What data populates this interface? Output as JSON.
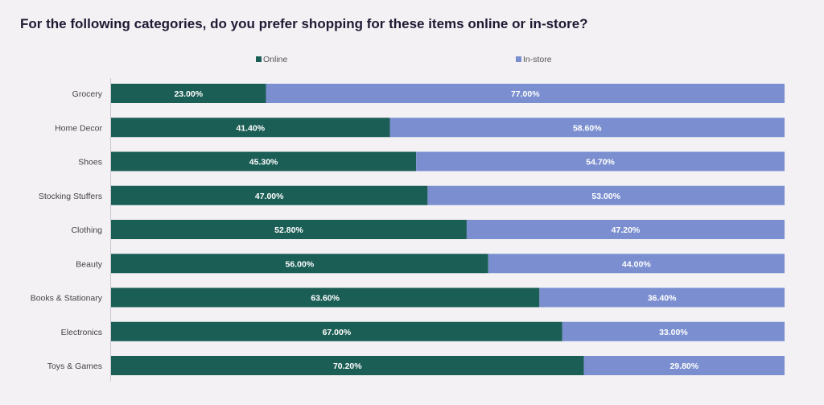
{
  "chart_data": {
    "type": "bar",
    "orientation": "horizontal",
    "stacked": true,
    "title": "For the following categories, do you prefer shopping for these items online or in-store?",
    "categories": [
      "Grocery",
      "Home Decor",
      "Shoes",
      "Stocking Stuffers",
      "Clothing",
      "Beauty",
      "Books & Stationary",
      "Electronics",
      "Toys & Games"
    ],
    "series": [
      {
        "name": "Online",
        "color": "#1b5e55",
        "values": [
          23.0,
          41.4,
          45.3,
          47.0,
          52.8,
          56.0,
          63.6,
          67.0,
          70.2
        ],
        "labels": [
          "23.00%",
          "41.40%",
          "45.30%",
          "47.00%",
          "52.80%",
          "56.00%",
          "63.60%",
          "67.00%",
          "70.20%"
        ]
      },
      {
        "name": "In-store",
        "color": "#7b8fd0",
        "values": [
          77.0,
          58.6,
          54.7,
          53.0,
          47.2,
          44.0,
          36.4,
          33.0,
          29.8
        ],
        "labels": [
          "77.00%",
          "58.60%",
          "54.70%",
          "53.00%",
          "47.20%",
          "44.00%",
          "36.40%",
          "33.00%",
          "29.80%"
        ]
      }
    ],
    "xlim": [
      0,
      100
    ],
    "legend_position": "top",
    "grid": false
  }
}
